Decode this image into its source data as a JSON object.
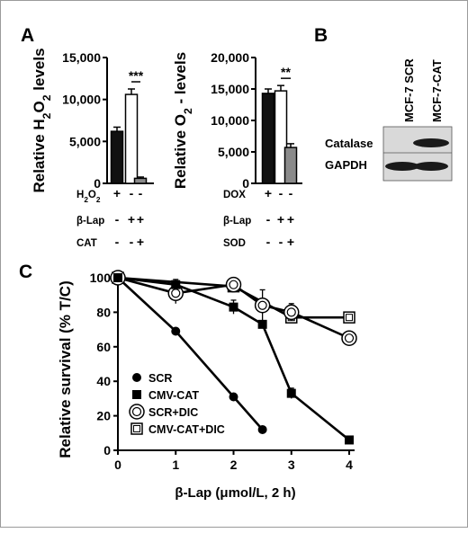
{
  "panels": {
    "a": "A",
    "b": "B",
    "c": "C"
  },
  "chart_data": [
    {
      "type": "bar",
      "panel": "A",
      "ylabel": "Relative H₂O₂ levels",
      "ylim": [
        0,
        15000
      ],
      "yticks": [
        "0",
        "5,000",
        "10,000",
        "15,000"
      ],
      "conditions": [
        {
          "label": "H₂O₂",
          "signs": [
            "+",
            "-",
            "-"
          ]
        },
        {
          "label": "β-Lap",
          "signs": [
            "-",
            "+",
            "+"
          ]
        },
        {
          "label": "CAT",
          "signs": [
            "-",
            "-",
            "+"
          ]
        }
      ],
      "values": [
        6200,
        10600,
        600
      ],
      "errors": [
        500,
        650,
        150
      ],
      "colors": [
        "#111111",
        "#ffffff",
        "#8a8a8a"
      ],
      "significance": "***"
    },
    {
      "type": "bar",
      "panel": "A",
      "ylabel": "Relative O₂ - levels",
      "ylim": [
        0,
        20000
      ],
      "yticks": [
        "0",
        "5,000",
        "10,000",
        "15,000",
        "20,000"
      ],
      "conditions": [
        {
          "label": "DOX",
          "signs": [
            "+",
            "-",
            "-"
          ]
        },
        {
          "label": "β-Lap",
          "signs": [
            "-",
            "+",
            "+"
          ]
        },
        {
          "label": "SOD",
          "signs": [
            "-",
            "-",
            "+"
          ]
        }
      ],
      "values": [
        14300,
        14700,
        5700
      ],
      "errors": [
        700,
        850,
        600
      ],
      "colors": [
        "#111111",
        "#ffffff",
        "#8a8a8a"
      ],
      "significance": "**"
    },
    {
      "type": "line",
      "panel": "C",
      "xlabel": "β-Lap (μmol/L, 2 h)",
      "ylabel": "Relative survival (% T/C)",
      "xlim": [
        0,
        4
      ],
      "ylim": [
        0,
        100
      ],
      "xticks": [
        "0",
        "1",
        "2",
        "3",
        "4"
      ],
      "yticks": [
        "0",
        "20",
        "40",
        "60",
        "80",
        "100"
      ],
      "series": [
        {
          "name": "SCR",
          "marker": "filled-circle",
          "x": [
            0,
            1,
            2,
            2.5
          ],
          "y": [
            100,
            69,
            31,
            12
          ],
          "err": [
            0,
            0,
            0,
            0
          ]
        },
        {
          "name": "CMV-CAT",
          "marker": "filled-square",
          "x": [
            0,
            1,
            2,
            2.5,
            3,
            4
          ],
          "y": [
            100,
            96,
            83,
            73,
            33,
            6
          ],
          "err": [
            0,
            3,
            4,
            0,
            3,
            0
          ]
        },
        {
          "name": "SCR+DIC",
          "marker": "open-circle",
          "x": [
            0,
            1,
            2,
            2.5,
            3,
            4
          ],
          "y": [
            100,
            91,
            96,
            84,
            80,
            65
          ],
          "err": [
            0,
            6,
            0,
            9,
            5,
            3
          ]
        },
        {
          "name": "CMV-CAT+DIC",
          "marker": "open-square",
          "x": [
            0,
            2,
            3,
            4
          ],
          "y": [
            100,
            95,
            77,
            77
          ],
          "err": [
            0,
            0,
            0,
            0
          ]
        }
      ]
    }
  ],
  "blot": {
    "columns": [
      "MCF-7 SCR",
      "MCF-7-CAT"
    ],
    "rows": [
      "Catalase",
      "GAPDH"
    ]
  }
}
